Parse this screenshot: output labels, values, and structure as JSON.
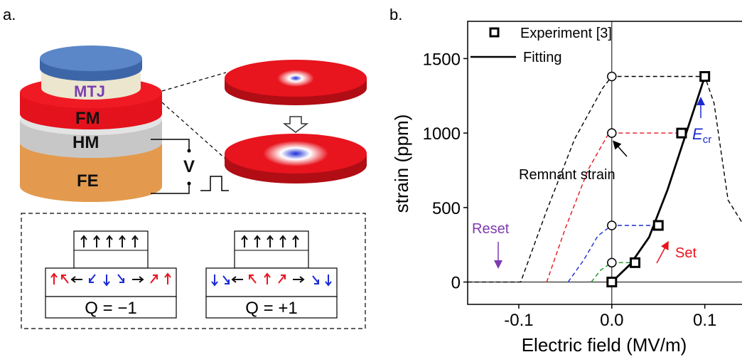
{
  "panel_a": {
    "label": "a.",
    "layers": {
      "mtj": "MTJ",
      "fm": "FM",
      "hm": "HM",
      "fe": "FE"
    },
    "voltage_label": "V",
    "q_left": "Q = −1",
    "q_right": "Q = +1",
    "colors": {
      "red": "#e8141e",
      "blue": "#1a2bd6",
      "mtj_top": "#5b86c8",
      "fm": "#e4121c",
      "hm": "#c7c7c7",
      "fe": "#e39a4e"
    }
  },
  "panel_b": {
    "label": "b.",
    "legend": {
      "experiment": "Experiment [3]",
      "fitting": "Fitting"
    },
    "annotations": {
      "remnant": "Remnant strain",
      "reset": "Reset",
      "set": "Set",
      "ecr_main": "E",
      "ecr_sub": "cr"
    },
    "annotation_colors": {
      "reset": "#7e3bb0",
      "set": "#e8141e",
      "ecr": "#1b2bd0"
    }
  },
  "chart_data": {
    "type": "line",
    "xlabel": "Electric field (MV/m)",
    "ylabel": "strain (ppm)",
    "xlim": [
      -0.155,
      0.14
    ],
    "ylim": [
      -150,
      1750
    ],
    "xticks": [
      -0.1,
      0.0,
      0.1
    ],
    "xtick_labels": [
      "-0.1",
      "0.0",
      "0.1"
    ],
    "yticks": [
      0,
      500,
      1000,
      1500
    ],
    "ytick_labels": [
      "0",
      "500",
      "1000",
      "1500"
    ],
    "legend_position": "top-left",
    "series": [
      {
        "name": "Experiment [3]",
        "marker": "square",
        "x": [
          0.0,
          0.025,
          0.05,
          0.075,
          0.1
        ],
        "y": [
          0,
          130,
          380,
          1000,
          1380
        ]
      },
      {
        "name": "Fitting",
        "style": "solid",
        "x": [
          0.0,
          0.02,
          0.04,
          0.06,
          0.08,
          0.1
        ],
        "y": [
          0,
          120,
          300,
          620,
          1000,
          1380
        ]
      },
      {
        "style": "dashed",
        "color": "#000000",
        "x": [
          -0.155,
          -0.098,
          -0.07,
          -0.04,
          -0.01,
          0.0,
          0.1,
          0.11,
          0.125,
          0.14
        ],
        "y": [
          0,
          0,
          480,
          960,
          1300,
          1380,
          1380,
          1200,
          550,
          400
        ]
      },
      {
        "style": "dashed",
        "color": "#e8141e",
        "x": [
          -0.07,
          -0.05,
          -0.025,
          -0.005,
          0.0,
          0.075
        ],
        "y": [
          0,
          360,
          760,
          980,
          1000,
          1000
        ]
      },
      {
        "style": "dashed",
        "color": "#1b2bd0",
        "x": [
          -0.047,
          -0.03,
          -0.015,
          0.0,
          0.05
        ],
        "y": [
          0,
          150,
          310,
          380,
          380
        ]
      },
      {
        "style": "dashed",
        "color": "#14961e",
        "x": [
          -0.022,
          -0.012,
          0.0,
          0.025
        ],
        "y": [
          0,
          80,
          130,
          130
        ]
      }
    ],
    "remnant_points": {
      "marker": "circle",
      "x": [
        0.0,
        0.0,
        0.0,
        0.0
      ],
      "y": [
        1380,
        1000,
        380,
        130
      ]
    }
  }
}
